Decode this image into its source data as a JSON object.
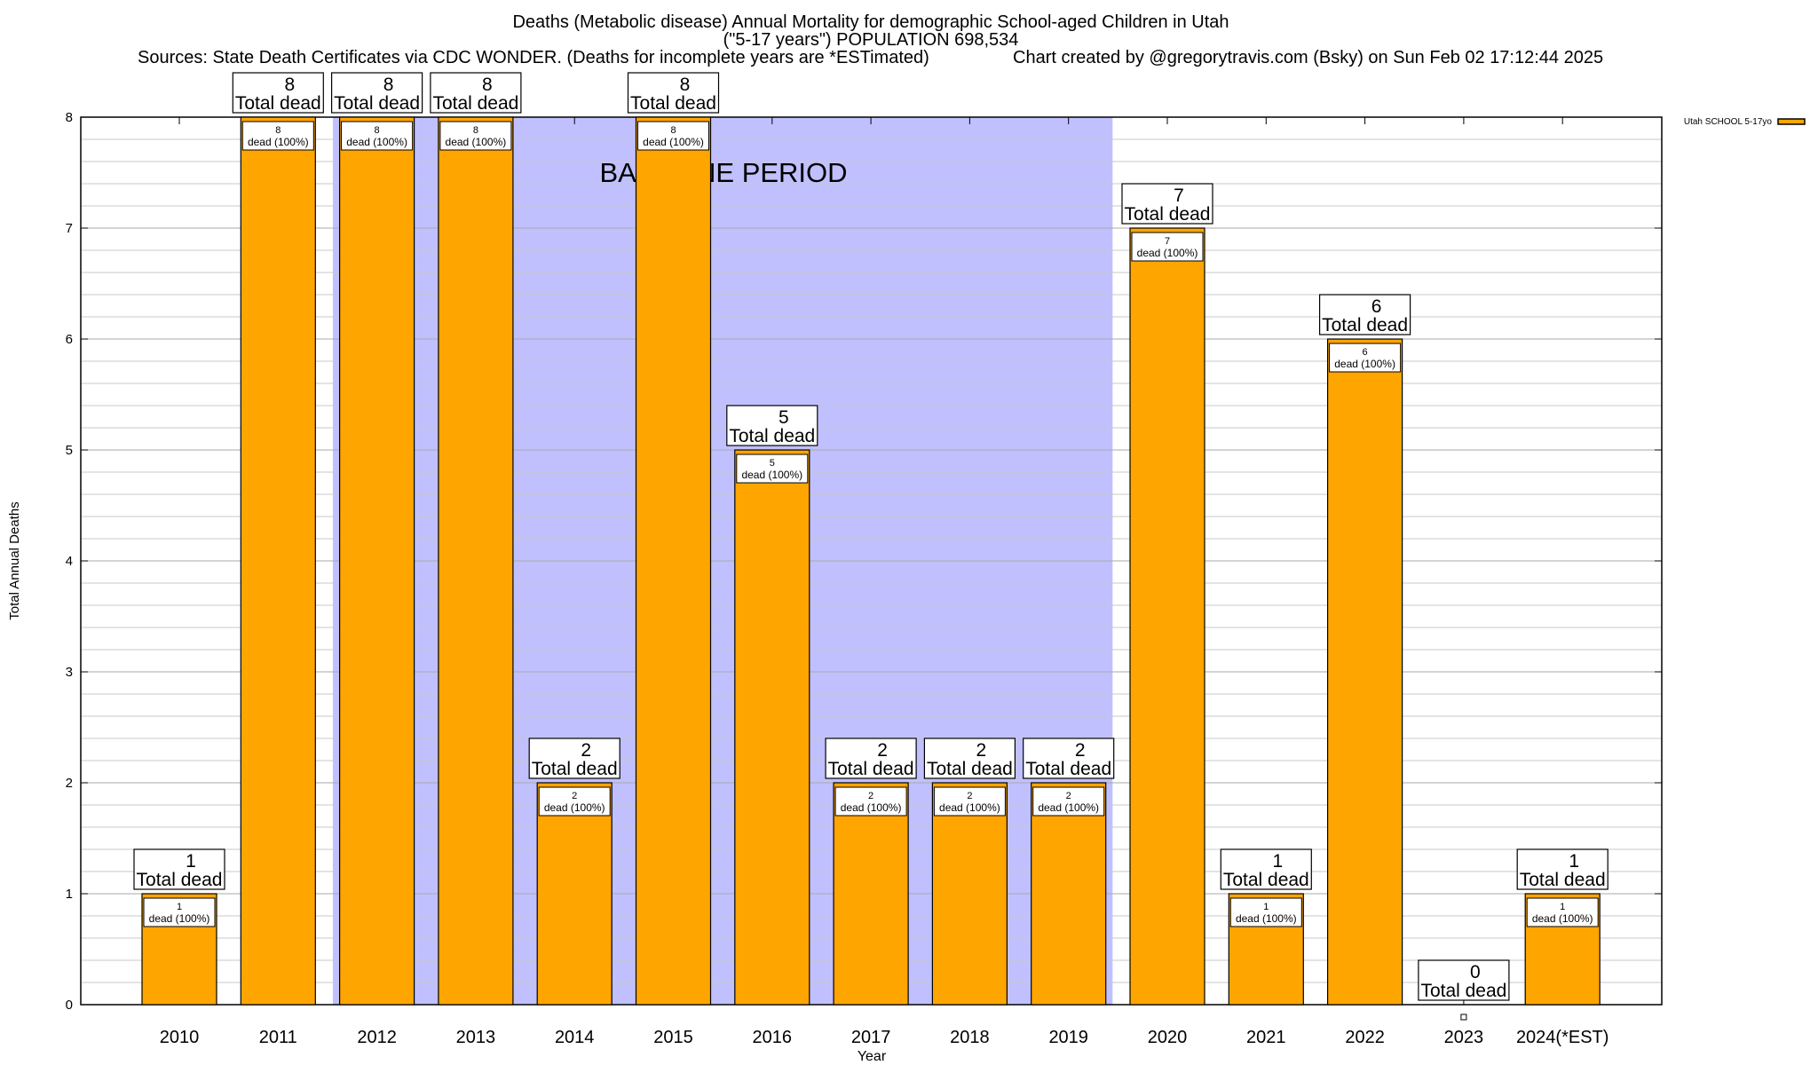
{
  "chart_data": {
    "type": "bar",
    "title_lines": [
      "Deaths (Metabolic disease) Annual Mortality for demographic School-aged Children in Utah",
      "(\"5-17 years\") POPULATION 698,534"
    ],
    "sources": "Sources: State Death Certificates via CDC WONDER. (Deaths for incomplete years are *ESTimated)",
    "credit": "Chart created by @gregorytravis.com (Bsky) on Sun Feb 02 17:12:44 2025",
    "xlabel": "Year",
    "ylabel": "Total Annual Deaths",
    "ylim": [
      0,
      8
    ],
    "yticks": [
      "0",
      "1",
      "2",
      "3",
      "4",
      "5",
      "6",
      "7",
      "8"
    ],
    "categories": [
      "2010",
      "2011",
      "2012",
      "2013",
      "2014",
      "2015",
      "2016",
      "2017",
      "2018",
      "2019",
      "2020",
      "2021",
      "2022",
      "2023",
      "2024(*EST)"
    ],
    "series": [
      {
        "name": "Utah SCHOOL 5-17yo",
        "color": "#ffa500",
        "values": [
          1,
          8,
          8,
          8,
          2,
          8,
          5,
          2,
          2,
          2,
          7,
          1,
          6,
          0,
          1
        ]
      }
    ],
    "total_label": "Total dead",
    "inner_label_suffix": "dead (100%)",
    "annotation": "BASELINE PERIOD",
    "baseline_range": [
      "2011.5",
      "2019.5"
    ],
    "baseline_color": "#c0c0ff",
    "legend_position": "top-right",
    "grid": true
  }
}
